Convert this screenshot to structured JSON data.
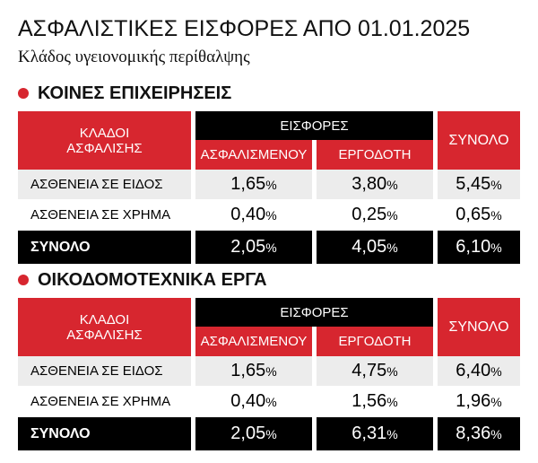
{
  "header": {
    "title": "ΑΣΦΑΛΙΣΤΙΚΕΣ ΕΙΣΦΟΡΕΣ ΑΠΟ 01.01.2025",
    "subtitle": "Κλάδος υγειονομικής περίθαλψης"
  },
  "sections": [
    {
      "title": "ΚΟΙΝΕΣ ΕΠΙΧΕΙΡΗΣΕΙΣ",
      "table": {
        "header": {
          "branch": "ΚΛΑΔΟΙ ΑΣΦΑΛΙΣΗΣ",
          "contributions": "ΕΙΣΦΟΡΕΣ",
          "insured": "ΑΣΦΑΛΙΣΜΕΝΟΥ",
          "employer": "ΕΡΓΟΔΟΤΗ",
          "total": "ΣΥΝΟΛΟ"
        },
        "rows": [
          [
            "ΑΣΘΕΝΕΙΑ ΣΕ ΕΙΔΟΣ",
            "1,65%",
            "3,80%",
            "5,45%"
          ],
          [
            "ΑΣΘΕΝΕΙΑ ΣΕ ΧΡΗΜΑ",
            "0,40%",
            "0,25%",
            "0,65%"
          ],
          [
            "ΣΥΝΟΛΟ",
            "2,05%",
            "4,05%",
            "6,10%"
          ]
        ]
      }
    },
    {
      "title": "ΟΙΚΟΔΟΜΟΤΕΧΝΙΚΑ ΕΡΓΑ",
      "table": {
        "header": {
          "branch": "ΚΛΑΔΟΙ ΑΣΦΑΛΙΣΗΣ",
          "contributions": "ΕΙΣΦΟΡΕΣ",
          "insured": "ΑΣΦΑΛΙΣΜΕΝΟΥ",
          "employer": "ΕΡΓΟΔΟΤΗ",
          "total": "ΣΥΝΟΛΟ"
        },
        "rows": [
          [
            "ΑΣΘΕΝΕΙΑ ΣΕ ΕΙΔΟΣ",
            "1,65%",
            "4,75%",
            "6,40%"
          ],
          [
            "ΑΣΘΕΝΕΙΑ ΣΕ ΧΡΗΜΑ",
            "0,40%",
            "1,56%",
            "1,96%"
          ],
          [
            "ΣΥΝΟΛΟ",
            "2,05%",
            "6,31%",
            "8,36%"
          ]
        ]
      }
    }
  ]
}
